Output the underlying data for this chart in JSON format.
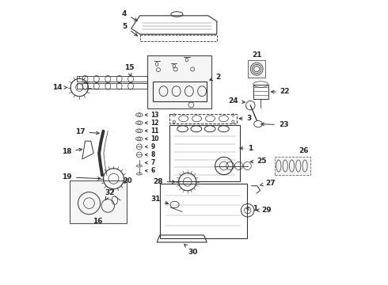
{
  "background": "#ffffff",
  "figsize": [
    4.9,
    3.6
  ],
  "dpi": 100,
  "line_color": "#333333",
  "text_color": "#222222"
}
